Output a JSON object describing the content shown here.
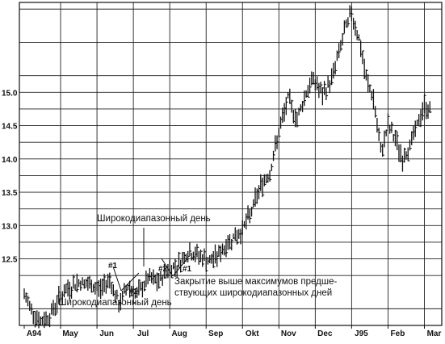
{
  "chart_data": {
    "type": "bar",
    "subtype": "ohlc-price-bars",
    "title": "",
    "xlabel": "",
    "ylabel": "",
    "grid": true,
    "legend": "none",
    "colors": {
      "bars": "#111111",
      "grid": "#222222",
      "background": "#ffffff"
    },
    "ylim": [
      11.5,
      16.35
    ],
    "y_ticks": [
      12.5,
      13.0,
      13.5,
      14.0,
      14.5,
      15.0
    ],
    "y_tick_labels": [
      "12.5",
      "13.0",
      "13.5",
      "14.0",
      "14.5",
      "15.0"
    ],
    "x_axis_months": [
      "A94",
      "May",
      "Jun",
      "Jul",
      "Aug",
      "Sep",
      "Okt",
      "Nov",
      "Dec",
      "J95",
      "Feb",
      "Mar"
    ],
    "x_month_start": 0,
    "x_month_count": 11.3,
    "price_path": {
      "x_month": [
        0.0,
        0.2,
        0.45,
        0.7,
        0.95,
        1.2,
        1.5,
        1.8,
        2.1,
        2.35,
        2.6,
        2.85,
        3.1,
        3.4,
        3.7,
        3.95,
        4.2,
        4.5,
        4.8,
        5.1,
        5.4,
        5.7,
        5.95,
        6.2,
        6.5,
        6.75,
        7.0,
        7.25,
        7.5,
        7.75,
        7.95,
        8.2,
        8.45,
        8.6,
        8.8,
        9.0,
        9.2,
        9.4,
        9.6,
        9.8,
        10.0,
        10.2,
        10.4,
        10.6,
        10.8,
        11.0,
        11.2
      ],
      "close": [
        11.95,
        11.75,
        11.55,
        11.65,
        11.9,
        12.05,
        12.15,
        12.1,
        12.05,
        12.2,
        11.8,
        12.1,
        11.95,
        12.2,
        12.15,
        12.35,
        12.4,
        12.6,
        12.55,
        12.45,
        12.6,
        12.8,
        12.9,
        13.15,
        13.6,
        13.8,
        14.4,
        14.9,
        14.6,
        15.0,
        15.2,
        14.95,
        15.2,
        15.5,
        15.9,
        16.2,
        15.8,
        15.2,
        14.9,
        14.1,
        14.5,
        14.3,
        14.0,
        14.2,
        14.5,
        14.8,
        14.7
      ]
    },
    "annotations": {
      "wide_range_day_top": "Широкодиапазонный день",
      "wide_range_day_bottom": "Широкодиапазонный день",
      "close_above_line1": "Закрытие выше максимумов предше-",
      "close_above_line2": "ствующих широкодиапазонных дней",
      "mark_1a": "#1",
      "mark_2a": "#2",
      "mark_1b": "#1",
      "mark_2b": "#2"
    }
  }
}
